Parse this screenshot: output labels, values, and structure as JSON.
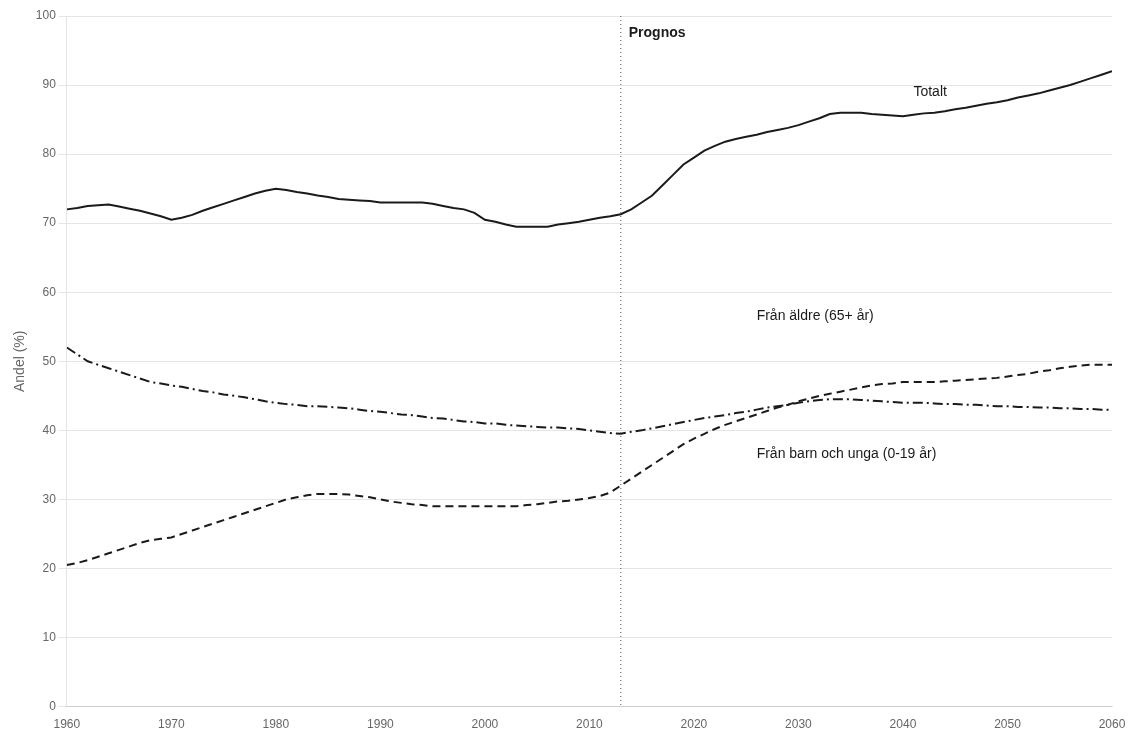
{
  "chart_data": {
    "type": "line",
    "ylabel": "Andel (%)",
    "xlim": [
      1960,
      2060
    ],
    "ylim": [
      0,
      100
    ],
    "xticks": [
      1960,
      1970,
      1980,
      1990,
      2000,
      2010,
      2020,
      2030,
      2040,
      2050,
      2060
    ],
    "yticks": [
      0,
      10,
      20,
      30,
      40,
      50,
      60,
      70,
      80,
      90,
      100
    ],
    "grid": "y",
    "x": [
      1960,
      1961,
      1962,
      1963,
      1964,
      1965,
      1966,
      1967,
      1968,
      1969,
      1970,
      1971,
      1972,
      1973,
      1974,
      1975,
      1976,
      1977,
      1978,
      1979,
      1980,
      1981,
      1982,
      1983,
      1984,
      1985,
      1986,
      1987,
      1988,
      1989,
      1990,
      1991,
      1992,
      1993,
      1994,
      1995,
      1996,
      1997,
      1998,
      1999,
      2000,
      2001,
      2002,
      2003,
      2004,
      2005,
      2006,
      2007,
      2008,
      2009,
      2010,
      2011,
      2012,
      2013,
      2014,
      2015,
      2016,
      2017,
      2018,
      2019,
      2020,
      2021,
      2022,
      2023,
      2024,
      2025,
      2026,
      2027,
      2028,
      2029,
      2030,
      2031,
      2032,
      2033,
      2034,
      2035,
      2036,
      2037,
      2038,
      2039,
      2040,
      2041,
      2042,
      2043,
      2044,
      2045,
      2046,
      2047,
      2048,
      2049,
      2050,
      2051,
      2052,
      2053,
      2054,
      2055,
      2056,
      2057,
      2058,
      2059,
      2060
    ],
    "series": [
      {
        "color": "#1a1a1a",
        "line_style": "solid",
        "values": [
          72.0,
          72.2,
          72.5,
          72.6,
          72.7,
          72.4,
          72.1,
          71.8,
          71.4,
          71.0,
          70.5,
          70.8,
          71.2,
          71.8,
          72.3,
          72.8,
          73.3,
          73.8,
          74.3,
          74.7,
          75.0,
          74.8,
          74.5,
          74.3,
          74.0,
          73.8,
          73.5,
          73.4,
          73.3,
          73.2,
          73.0,
          73.0,
          73.0,
          73.0,
          73.0,
          72.8,
          72.5,
          72.2,
          72.0,
          71.5,
          70.5,
          70.2,
          69.8,
          69.5,
          69.5,
          69.5,
          69.5,
          69.8,
          70.0,
          70.2,
          70.5,
          70.8,
          71.0,
          71.3,
          72.0,
          73.0,
          74.0,
          75.5,
          77.0,
          78.5,
          79.5,
          80.5,
          81.2,
          81.8,
          82.2,
          82.5,
          82.8,
          83.2,
          83.5,
          83.8,
          84.2,
          84.7,
          85.2,
          85.8,
          86.0,
          86.0,
          86.0,
          85.8,
          85.7,
          85.6,
          85.5,
          85.7,
          85.9,
          86.0,
          86.2,
          86.5,
          86.7,
          87.0,
          87.3,
          87.5,
          87.8,
          88.2,
          88.5,
          88.8,
          89.2,
          89.6,
          90.0,
          90.5,
          91.0,
          91.5,
          92.0
        ]
      },
      {
        "color": "#1a1a1a",
        "line_style": "dashdot",
        "values": [
          52.0,
          51.0,
          50.0,
          49.5,
          49.0,
          48.5,
          48.0,
          47.5,
          47.0,
          46.8,
          46.5,
          46.3,
          46.0,
          45.7,
          45.5,
          45.2,
          45.0,
          44.8,
          44.5,
          44.2,
          44.0,
          43.8,
          43.7,
          43.5,
          43.5,
          43.4,
          43.3,
          43.2,
          43.0,
          42.8,
          42.7,
          42.5,
          42.3,
          42.2,
          42.0,
          41.8,
          41.7,
          41.5,
          41.3,
          41.2,
          41.0,
          41.0,
          40.8,
          40.7,
          40.6,
          40.5,
          40.4,
          40.4,
          40.3,
          40.2,
          40.0,
          39.8,
          39.6,
          39.5,
          39.8,
          40.0,
          40.3,
          40.6,
          40.9,
          41.2,
          41.5,
          41.8,
          42.0,
          42.2,
          42.5,
          42.7,
          43.0,
          43.3,
          43.5,
          43.7,
          44.0,
          44.2,
          44.4,
          44.5,
          44.5,
          44.5,
          44.4,
          44.3,
          44.2,
          44.1,
          44.0,
          44.0,
          44.0,
          43.9,
          43.8,
          43.8,
          43.7,
          43.7,
          43.6,
          43.5,
          43.5,
          43.4,
          43.4,
          43.3,
          43.3,
          43.2,
          43.2,
          43.1,
          43.1,
          43.0,
          43.0
        ]
      },
      {
        "color": "#1a1a1a",
        "line_style": "dashed",
        "values": [
          20.5,
          20.8,
          21.2,
          21.7,
          22.2,
          22.7,
          23.2,
          23.7,
          24.1,
          24.3,
          24.5,
          25.0,
          25.5,
          26.0,
          26.5,
          27.0,
          27.5,
          28.0,
          28.5,
          29.0,
          29.5,
          30.0,
          30.3,
          30.6,
          30.8,
          30.8,
          30.8,
          30.7,
          30.5,
          30.3,
          30.0,
          29.7,
          29.5,
          29.3,
          29.2,
          29.0,
          29.0,
          29.0,
          29.0,
          29.0,
          29.0,
          29.0,
          29.0,
          29.0,
          29.2,
          29.3,
          29.5,
          29.7,
          29.8,
          30.0,
          30.2,
          30.5,
          31.0,
          32.0,
          33.0,
          34.0,
          35.0,
          36.0,
          37.0,
          38.0,
          38.8,
          39.5,
          40.2,
          40.8,
          41.3,
          41.8,
          42.3,
          42.8,
          43.3,
          43.7,
          44.2,
          44.6,
          45.0,
          45.3,
          45.6,
          45.9,
          46.2,
          46.5,
          46.7,
          46.8,
          47.0,
          47.0,
          47.0,
          47.0,
          47.1,
          47.2,
          47.3,
          47.4,
          47.5,
          47.6,
          47.8,
          48.0,
          48.2,
          48.5,
          48.7,
          49.0,
          49.2,
          49.4,
          49.5,
          49.5,
          49.5
        ]
      }
    ],
    "vlines": [
      {
        "x": 2013,
        "label": "Prognos",
        "color": "#777777",
        "line_style": "dotted"
      }
    ],
    "annotations": [
      {
        "text": "Totalt",
        "x": 2041,
        "y": 89
      },
      {
        "text": "Från äldre (65+ år)",
        "x": 2026,
        "y": 56.5
      },
      {
        "text": "Från barn och unga (0-19 år)",
        "x": 2026,
        "y": 36.5
      }
    ]
  }
}
